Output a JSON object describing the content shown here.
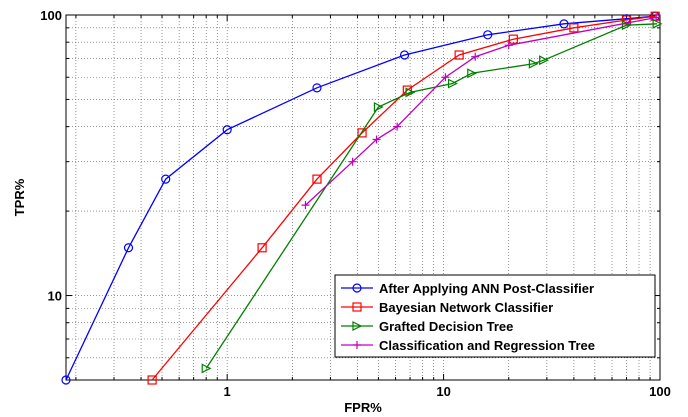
{
  "chart_data": {
    "type": "line",
    "xlabel": "FPR%",
    "ylabel": "TPR%",
    "xscale": "log",
    "yscale": "log",
    "xlim": [
      0.18,
      100
    ],
    "ylim": [
      5,
      100
    ],
    "grid": true,
    "x_tick_labels": [
      {
        "value": 1,
        "label": "1"
      },
      {
        "value": 10,
        "label": "10"
      },
      {
        "value": 100,
        "label": "100"
      }
    ],
    "y_tick_labels": [
      {
        "value": 10,
        "label": "10"
      },
      {
        "value": 100,
        "label": "100"
      }
    ],
    "legend_position": "bottom-right",
    "series": [
      {
        "name": "After Applying ANN Post-Classifier",
        "color": "#0000ff",
        "marker": "circle",
        "points": [
          [
            0.18,
            5
          ],
          [
            0.35,
            14.8
          ],
          [
            0.52,
            26
          ],
          [
            1.0,
            39
          ],
          [
            2.6,
            55
          ],
          [
            6.6,
            72
          ],
          [
            16,
            85
          ],
          [
            36,
            93
          ],
          [
            70,
            97
          ],
          [
            95,
            99
          ]
        ]
      },
      {
        "name": "Bayesian Network Classifier",
        "color": "#ff0000",
        "marker": "square",
        "points": [
          [
            0.45,
            5
          ],
          [
            1.45,
            14.8
          ],
          [
            2.6,
            26
          ],
          [
            4.2,
            38
          ],
          [
            6.8,
            54
          ],
          [
            11.8,
            72
          ],
          [
            21,
            82
          ],
          [
            40,
            90
          ],
          [
            70,
            96
          ],
          [
            95,
            99
          ]
        ]
      },
      {
        "name": "Grafted Decision Tree",
        "color": "#008000",
        "marker": "triangle-right",
        "points": [
          [
            0.8,
            5.5
          ],
          [
            5.0,
            47
          ],
          [
            7.0,
            53
          ],
          [
            11.0,
            57
          ],
          [
            13.5,
            62
          ],
          [
            26,
            67
          ],
          [
            29,
            69
          ],
          [
            70,
            92
          ],
          [
            97,
            93
          ]
        ]
      },
      {
        "name": "Classification and Regression Tree",
        "color": "#c000c0",
        "marker": "plus",
        "points": [
          [
            2.3,
            21
          ],
          [
            3.8,
            30
          ],
          [
            4.9,
            36
          ],
          [
            6.1,
            40
          ],
          [
            10.2,
            60
          ],
          [
            14,
            71
          ],
          [
            20,
            78
          ],
          [
            96,
            98
          ]
        ]
      }
    ]
  }
}
